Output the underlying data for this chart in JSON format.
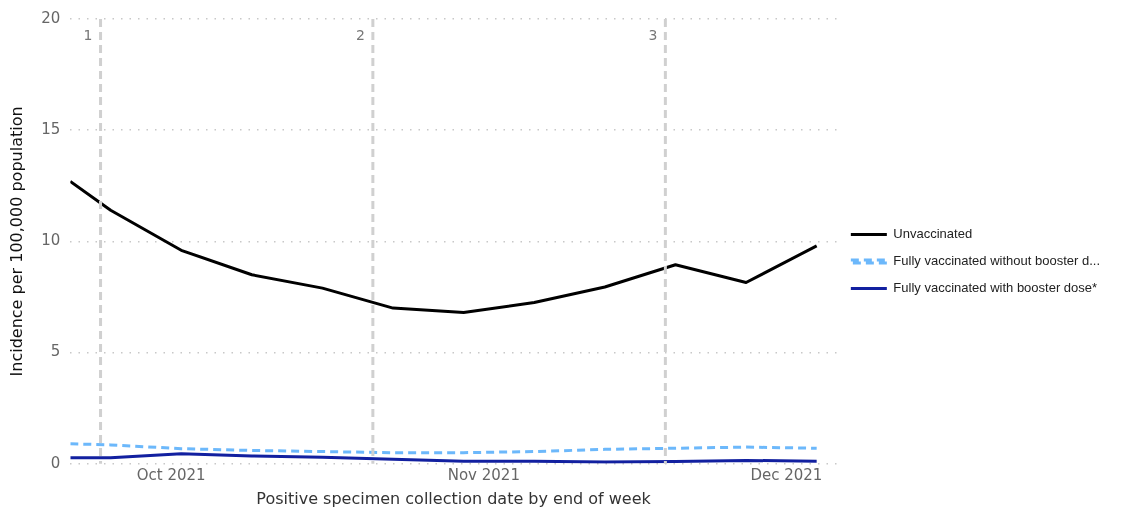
{
  "chart_data": {
    "type": "line",
    "xlabel": "Positive specimen collection date by end of week",
    "ylabel": "Incidence per 100,000 population",
    "x": [
      "2021-09-21",
      "2021-09-25",
      "2021-10-02",
      "2021-10-09",
      "2021-10-16",
      "2021-10-23",
      "2021-10-30",
      "2021-11-06",
      "2021-11-13",
      "2021-11-20",
      "2021-11-27",
      "2021-12-04"
    ],
    "series": [
      {
        "name": "Unvaccinated",
        "color": "#000000",
        "line_style": "solid",
        "values": [
          12.7,
          11.4,
          9.6,
          8.5,
          7.9,
          7.0,
          6.8,
          7.25,
          7.95,
          8.95,
          8.15,
          9.8
        ]
      },
      {
        "name": "Fully vaccinated without booster d...",
        "color": "#6cb8fb",
        "line_style": "dashed",
        "values": [
          0.9,
          0.85,
          0.68,
          0.6,
          0.55,
          0.5,
          0.5,
          0.55,
          0.65,
          0.7,
          0.75,
          0.7
        ]
      },
      {
        "name": "Fully vaccinated with booster dose*",
        "color": "#1220a0",
        "line_style": "solid",
        "values": [
          0.27,
          0.27,
          0.45,
          0.35,
          0.3,
          0.2,
          0.12,
          0.12,
          0.08,
          0.1,
          0.15,
          0.12
        ]
      }
    ],
    "xlim": [
      "2021-09-21",
      "2021-12-06"
    ],
    "xticks": [
      {
        "value": "2021-10-01",
        "label": "Oct 2021"
      },
      {
        "value": "2021-11-01",
        "label": "Nov 2021"
      },
      {
        "value": "2021-12-01",
        "label": "Dec 2021"
      }
    ],
    "ylim": [
      0,
      20
    ],
    "yticks": [
      0,
      5,
      10,
      15,
      20
    ],
    "ref_lines": [
      {
        "axis": "x",
        "value": "2021-09-24",
        "label": "1",
        "color": "#d0d0d0",
        "line_style": "dashed"
      },
      {
        "axis": "x",
        "value": "2021-10-21",
        "label": "2",
        "color": "#d0d0d0",
        "line_style": "dashed"
      },
      {
        "axis": "x",
        "value": "2021-11-19",
        "label": "3",
        "color": "#d0d0d0",
        "line_style": "dashed"
      }
    ],
    "grid": "y",
    "legend": "right",
    "marker": "none"
  }
}
